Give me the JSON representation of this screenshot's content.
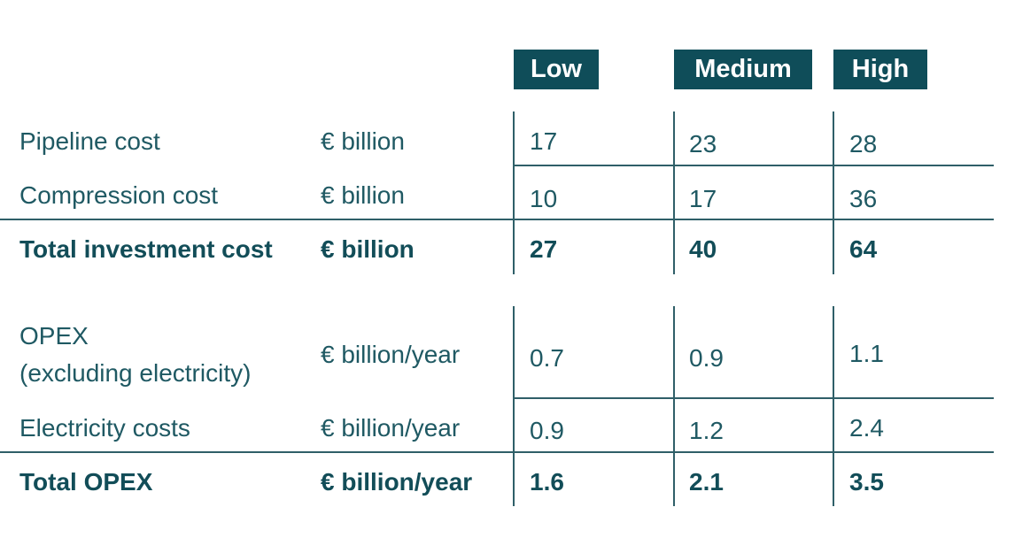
{
  "columns": [
    "Low",
    "Medium",
    "High"
  ],
  "section1": {
    "rows": [
      {
        "label": "Pipeline cost",
        "unit": "€ billion",
        "low": "17",
        "medium": "23",
        "high": "28"
      },
      {
        "label": "Compression cost",
        "unit": "€ billion",
        "low": "10",
        "medium": "17",
        "high": "36"
      }
    ],
    "total": {
      "label": "Total investment cost",
      "unit": "€ billion",
      "low": "27",
      "medium": "40",
      "high": "64"
    }
  },
  "section2": {
    "rows": [
      {
        "label_line1": "OPEX",
        "label_line2": "(excluding electricity)",
        "unit": "€ billion/year",
        "low": "0.7",
        "medium": "0.9",
        "high": "1.1"
      },
      {
        "label": "Electricity costs",
        "unit": "€ billion/year",
        "low": "0.9",
        "medium": "1.2",
        "high": "2.4"
      }
    ],
    "total": {
      "label": "Total OPEX",
      "unit": "€ billion/year",
      "low": "1.6",
      "medium": "2.1",
      "high": "3.5"
    }
  },
  "colors": {
    "header_bg": "#0f4d59",
    "text": "#1f5963",
    "line": "#2f5f68"
  }
}
